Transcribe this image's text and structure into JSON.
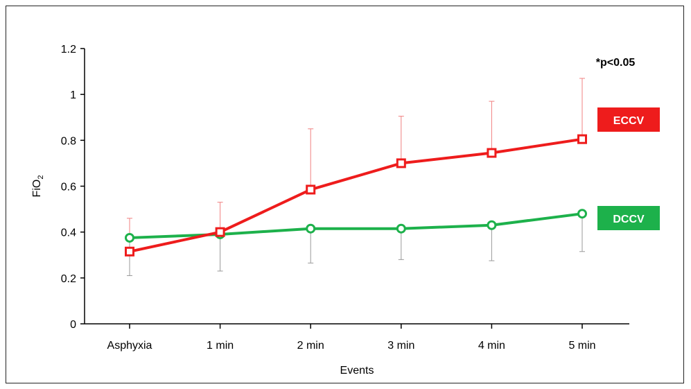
{
  "chart_data": {
    "type": "line",
    "categories": [
      "Asphyxia",
      "1 min",
      "2 min",
      "3 min",
      "4 min",
      "5 min"
    ],
    "xlabel": "Events",
    "ylabel_main": "FiO",
    "ylabel_sub": "2",
    "ylim": [
      0,
      1.2
    ],
    "yticks": [
      "0",
      "0.2",
      "0.4",
      "0.6",
      "0.8",
      "1",
      "1.2"
    ],
    "ytick_values": [
      0,
      0.2,
      0.4,
      0.6,
      0.8,
      1.0,
      1.2
    ],
    "grid": false,
    "annotation": "*p<0.05",
    "series": [
      {
        "name": "ECCV",
        "color": "#ee1c1c",
        "marker": "square",
        "values": [
          0.315,
          0.4,
          0.585,
          0.7,
          0.745,
          0.805
        ],
        "error_upper": [
          0.46,
          0.53,
          0.85,
          0.905,
          0.97,
          1.07
        ]
      },
      {
        "name": "DCCV",
        "color": "#1db14b",
        "marker": "circle",
        "values": [
          0.375,
          0.39,
          0.415,
          0.415,
          0.43,
          0.48
        ],
        "error_lower": [
          0.21,
          0.23,
          0.265,
          0.28,
          0.275,
          0.315
        ]
      }
    ]
  }
}
